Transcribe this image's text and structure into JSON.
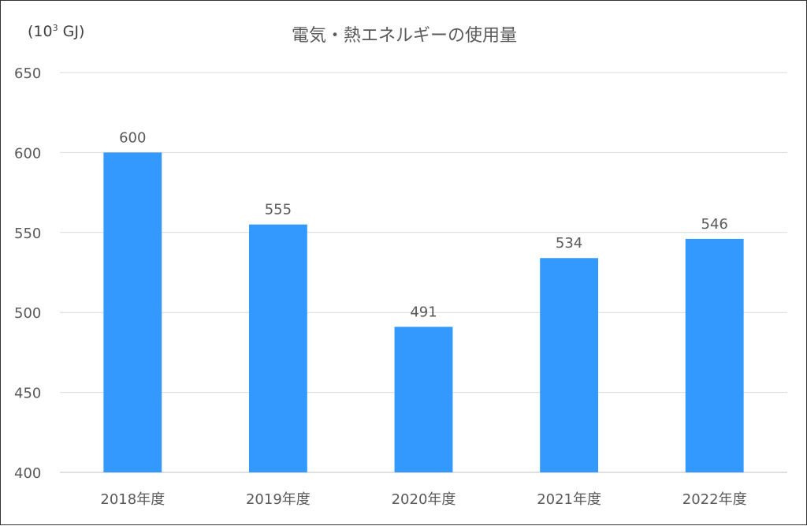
{
  "chart_data": {
    "type": "bar",
    "title": "電気・熱エネルギーの使用量",
    "unit_label": {
      "prefix": "(10",
      "sup": "3",
      "suffix": " GJ)"
    },
    "categories": [
      "2018年度",
      "2019年度",
      "2020年度",
      "2021年度",
      "2022年度"
    ],
    "values": [
      600,
      555,
      491,
      534,
      546
    ],
    "ylim": [
      400,
      650
    ],
    "yticks": [
      400,
      450,
      500,
      550,
      600,
      650
    ],
    "grid": true,
    "legend": "none",
    "bar_color": "#3399FF",
    "grid_color": "#D9D9D9"
  }
}
